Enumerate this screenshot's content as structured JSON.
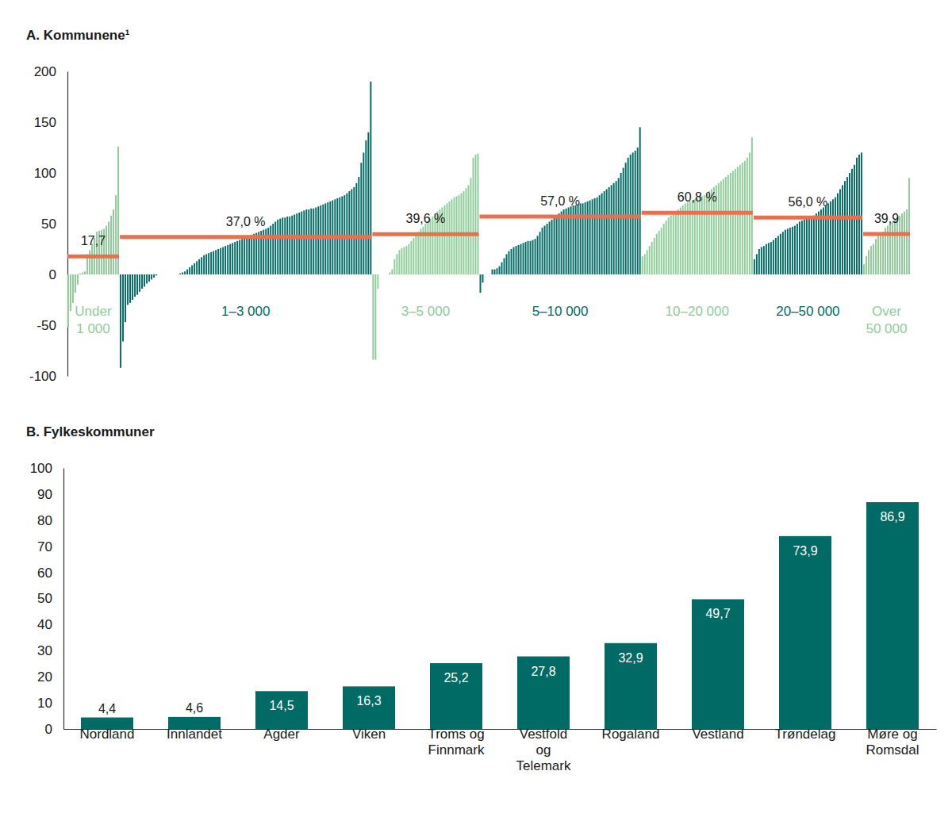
{
  "chart_data": [
    {
      "type": "bar",
      "title": "A. Kommunene¹",
      "tick_labels": "y",
      "ylim": [
        -100,
        200
      ],
      "yticks": [
        -100,
        -50,
        0,
        50,
        100,
        150,
        200
      ],
      "series": [
        {
          "name": "Under 1 000",
          "color": "#8fcc9a",
          "average": 17.7,
          "average_label": "17,7",
          "values": [
            -52,
            -36,
            -28,
            -18,
            -10,
            1,
            2,
            3,
            20,
            24,
            30,
            36,
            42,
            43,
            44,
            45,
            48,
            52,
            58,
            64,
            78,
            126
          ]
        },
        {
          "name": "1–3 000",
          "color": "#006b64",
          "average": 37.0,
          "average_label": "37,0 %",
          "values": [
            -92,
            -66,
            -47,
            -30,
            -28,
            -25,
            -22,
            -20,
            -17,
            -14,
            -12,
            -9,
            -7,
            -5,
            -3,
            -1,
            0,
            0,
            0,
            0,
            0,
            0,
            0,
            0,
            0,
            1,
            2,
            3,
            5,
            7,
            9,
            11,
            13,
            15,
            17,
            19,
            20,
            21,
            22,
            23,
            24,
            25,
            26,
            27,
            28,
            29,
            30,
            31,
            32,
            33,
            34,
            35,
            36,
            37,
            38,
            39,
            40,
            41,
            42,
            43,
            44,
            45,
            46,
            48,
            50,
            52,
            54,
            55,
            56,
            56,
            57,
            57,
            58,
            59,
            60,
            61,
            62,
            63,
            64,
            64,
            65,
            65,
            66,
            67,
            68,
            69,
            70,
            71,
            72,
            73,
            74,
            75,
            76,
            77,
            78,
            80,
            82,
            84,
            86,
            90,
            96,
            110,
            120,
            132,
            140,
            190
          ]
        },
        {
          "name": "3–5 000",
          "color": "#8fcc9a",
          "average": 39.6,
          "average_label": "39,6 %",
          "values": [
            -84,
            -84,
            -14,
            0,
            0,
            0,
            0,
            2,
            5,
            15,
            20,
            24,
            26,
            27,
            28,
            30,
            33,
            36,
            40,
            42,
            45,
            47,
            50,
            52,
            55,
            57,
            60,
            62,
            64,
            66,
            68,
            70,
            72,
            74,
            76,
            77,
            78,
            80,
            82,
            85,
            88,
            95,
            115,
            118,
            119
          ]
        },
        {
          "name": "5–10 000",
          "color": "#006b64",
          "average": 57.0,
          "average_label": "57,0 %",
          "values": [
            -18,
            -8,
            0,
            0,
            0,
            5,
            5,
            6,
            8,
            12,
            16,
            20,
            23,
            25,
            27,
            28,
            29,
            30,
            31,
            32,
            33,
            33,
            34,
            35,
            38,
            42,
            46,
            48,
            50,
            52,
            54,
            56,
            58,
            60,
            62,
            64,
            65,
            66,
            67,
            68,
            68,
            69,
            70,
            70,
            71,
            72,
            73,
            74,
            75,
            76,
            78,
            80,
            82,
            84,
            86,
            88,
            90,
            92,
            95,
            100,
            105,
            110,
            115,
            118,
            120,
            122,
            125,
            145
          ]
        },
        {
          "name": "10–20 000",
          "color": "#8fcc9a",
          "average": 60.8,
          "average_label": "60,8 %",
          "values": [
            18,
            20,
            24,
            28,
            32,
            36,
            40,
            43,
            46,
            50,
            53,
            56,
            58,
            60,
            62,
            64,
            66,
            68,
            70,
            71,
            72,
            73,
            74,
            75,
            76,
            77,
            78,
            80,
            82,
            84,
            86,
            88,
            90,
            92,
            94,
            96,
            98,
            100,
            102,
            104,
            106,
            108,
            110,
            112,
            115,
            120,
            135
          ]
        },
        {
          "name": "20–50 000",
          "color": "#006b64",
          "average": 56.0,
          "average_label": "56,0 %",
          "values": [
            15,
            20,
            25,
            27,
            28,
            30,
            31,
            32,
            34,
            36,
            38,
            40,
            42,
            44,
            45,
            46,
            47,
            48,
            50,
            52,
            53,
            54,
            55,
            56,
            57,
            58,
            60,
            62,
            64,
            66,
            68,
            70,
            72,
            74,
            76,
            80,
            84,
            88,
            92,
            96,
            100,
            104,
            108,
            115,
            118,
            120
          ]
        },
        {
          "name": "Over 50 000",
          "color": "#8fcc9a",
          "average": 39.9,
          "average_label": "39,9",
          "values": [
            10,
            18,
            24,
            28,
            30,
            35,
            38,
            40,
            42,
            46,
            48,
            50,
            52,
            55,
            57,
            58,
            60,
            62,
            64,
            95
          ]
        }
      ]
    },
    {
      "type": "bar",
      "title": "B. Fylkeskommuner",
      "categories": [
        "Nordland",
        "Innlandet",
        "Agder",
        "Viken",
        "Troms og Finnmark",
        "Vestfold og Telemark",
        "Rogaland",
        "Vestland",
        "Trøndelag",
        "Møre og Romsdal"
      ],
      "values": [
        4.4,
        4.6,
        14.5,
        16.3,
        25.2,
        27.8,
        32.9,
        49.7,
        73.9,
        86.9
      ],
      "value_labels": [
        "4,4",
        "4,6",
        "14,5",
        "16,3",
        "25,2",
        "27,8",
        "32,9",
        "49,7",
        "73,9",
        "86,9"
      ],
      "color": "#006b64",
      "data_labels": true,
      "ylim": [
        0,
        100
      ],
      "yticks": [
        0,
        10,
        20,
        30,
        40,
        50,
        60,
        70,
        80,
        90,
        100
      ]
    }
  ]
}
